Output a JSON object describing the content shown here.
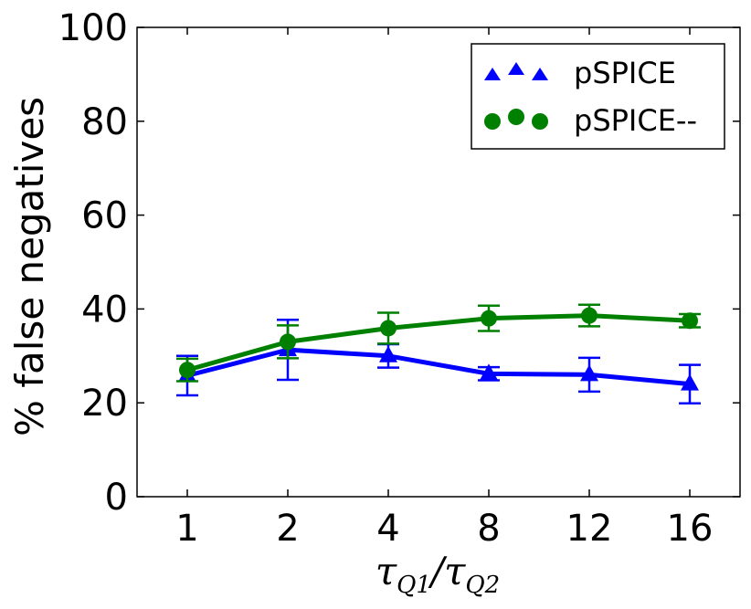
{
  "chart_data": {
    "type": "line",
    "title": "",
    "xlabel": "τQ1/τQ2",
    "xlabel_parts": {
      "base1": "τ",
      "sub1": "Q1",
      "slash": "/",
      "base2": "τ",
      "sub2": "Q2"
    },
    "ylabel": "% false negatives",
    "categories": [
      "1",
      "2",
      "4",
      "8",
      "12",
      "16"
    ],
    "ylim": [
      0,
      100
    ],
    "yticks": [
      "0",
      "20",
      "40",
      "60",
      "80",
      "100"
    ],
    "ytick_values": [
      0,
      20,
      40,
      60,
      80,
      100
    ],
    "legend_position": "top-right",
    "series": [
      {
        "name": "pSPICE",
        "marker": "triangle",
        "color": "#0000ff",
        "values": [
          25.8,
          31.3,
          30.0,
          26.2,
          26.0,
          24.0
        ],
        "error_low": [
          21.6,
          24.9,
          27.5,
          24.8,
          22.4,
          19.9
        ],
        "error_high": [
          30.0,
          37.7,
          32.5,
          27.6,
          29.6,
          28.1
        ]
      },
      {
        "name": "pSPICE--",
        "marker": "circle",
        "color": "#008000",
        "values": [
          27.0,
          33.0,
          35.9,
          38.0,
          38.6,
          37.5
        ],
        "error_low": [
          24.6,
          29.5,
          32.6,
          35.3,
          36.3,
          36.1
        ],
        "error_high": [
          29.4,
          36.5,
          39.2,
          40.7,
          40.9,
          38.9
        ]
      }
    ]
  }
}
